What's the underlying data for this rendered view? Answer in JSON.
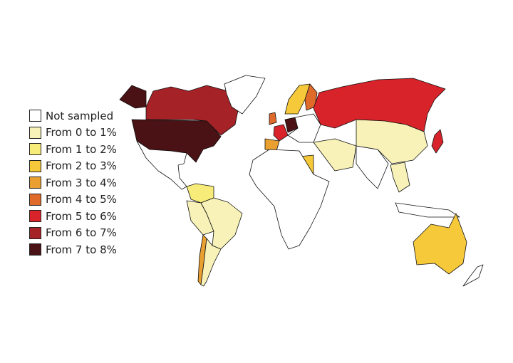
{
  "legend": {
    "items": [
      {
        "label": "Not sampled",
        "color": "#ffffff"
      },
      {
        "label": "From 0 to 1%",
        "color": "#f8f2b8"
      },
      {
        "label": "From 1 to 2%",
        "color": "#f7ec7a"
      },
      {
        "label": "From 2 to 3%",
        "color": "#f6c93a"
      },
      {
        "label": "From 3 to 4%",
        "color": "#e9a030"
      },
      {
        "label": "From 4 to 5%",
        "color": "#e06a2a"
      },
      {
        "label": "From 5 to 6%",
        "color": "#d9232a"
      },
      {
        "label": "From 6 to 7%",
        "color": "#a52227"
      },
      {
        "label": "From 7 to 8%",
        "color": "#4a1214"
      }
    ]
  },
  "chart_data": {
    "type": "choropleth",
    "regions": [
      {
        "region": "Canada",
        "class": 7
      },
      {
        "region": "United States",
        "class": 8
      },
      {
        "region": "Greenland",
        "class": 0
      },
      {
        "region": "Mexico & Central America",
        "class": 0
      },
      {
        "region": "Colombia/Venezuela",
        "class": 2
      },
      {
        "region": "Brazil",
        "class": 1
      },
      {
        "region": "Peru/Bolivia",
        "class": 1
      },
      {
        "region": "Chile",
        "class": 4
      },
      {
        "region": "Argentina",
        "class": 1
      },
      {
        "region": "United Kingdom",
        "class": 5
      },
      {
        "region": "France",
        "class": 6
      },
      {
        "region": "Spain",
        "class": 4
      },
      {
        "region": "Germany",
        "class": 8
      },
      {
        "region": "Scandinavia",
        "class": 3
      },
      {
        "region": "Finland",
        "class": 5
      },
      {
        "region": "Russia",
        "class": 6
      },
      {
        "region": "Africa",
        "class": 0
      },
      {
        "region": "Egypt",
        "class": 3
      },
      {
        "region": "Middle East",
        "class": 1
      },
      {
        "region": "India",
        "class": 0
      },
      {
        "region": "China",
        "class": 1
      },
      {
        "region": "Japan",
        "class": 6
      },
      {
        "region": "Southeast Asia",
        "class": 1
      },
      {
        "region": "Australia",
        "class": 3
      }
    ]
  }
}
